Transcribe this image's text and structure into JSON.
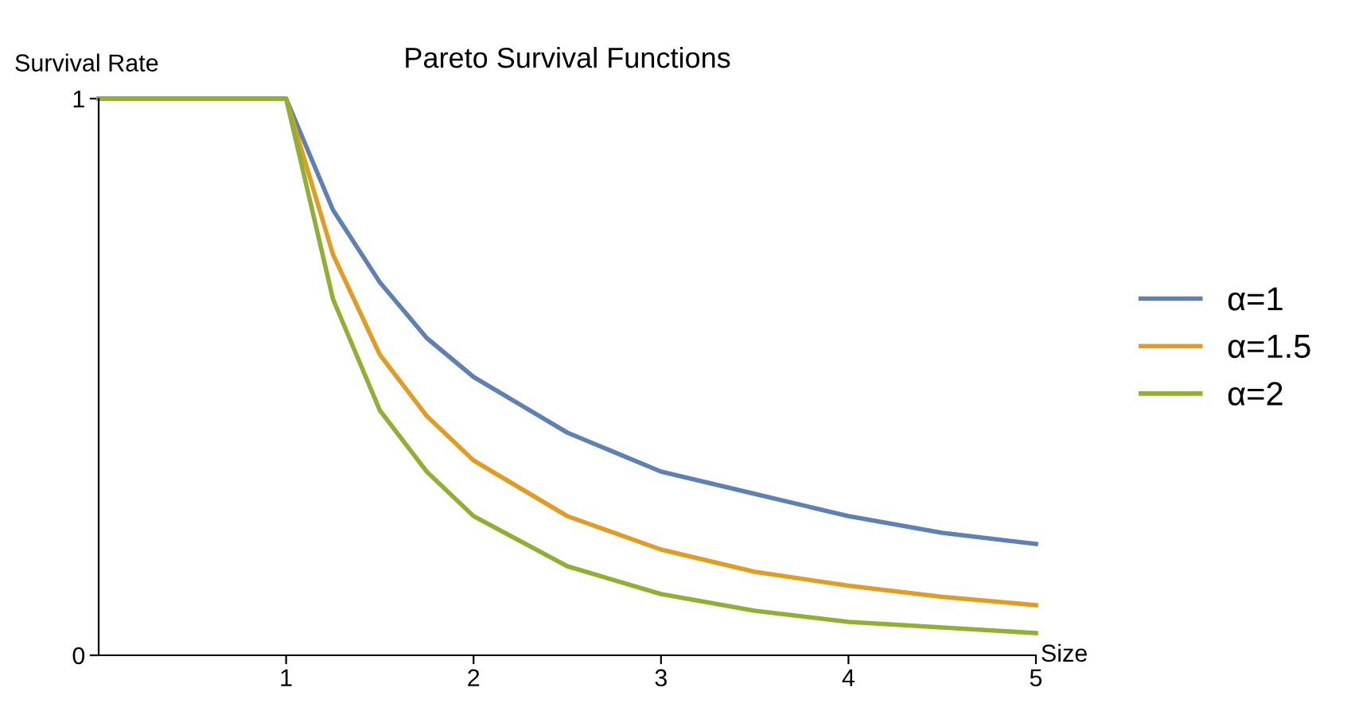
{
  "chart_data": {
    "type": "line",
    "title": "Pareto Survival Functions",
    "xlabel": "Size",
    "ylabel": "Survival Rate",
    "x": [
      0,
      1,
      1.25,
      1.5,
      1.75,
      2,
      2.5,
      3,
      3.5,
      4,
      4.5,
      5
    ],
    "series": [
      {
        "name": "α=1",
        "color": "#5e81b5",
        "values": [
          1,
          1,
          0.8,
          0.67,
          0.57,
          0.5,
          0.4,
          0.33,
          0.29,
          0.25,
          0.22,
          0.2
        ]
      },
      {
        "name": "α=1.5",
        "color": "#e19c24",
        "values": [
          1,
          1,
          0.72,
          0.54,
          0.43,
          0.35,
          0.25,
          0.19,
          0.15,
          0.125,
          0.105,
          0.09
        ]
      },
      {
        "name": "α=2",
        "color": "#8fb032",
        "values": [
          1,
          1,
          0.64,
          0.44,
          0.33,
          0.25,
          0.16,
          0.11,
          0.08,
          0.06,
          0.05,
          0.04
        ]
      }
    ],
    "xlim": [
      0,
      5
    ],
    "ylim": [
      0,
      1
    ],
    "xticks": [
      1,
      2,
      3,
      4,
      5
    ],
    "yticks": [
      0,
      1
    ],
    "grid": false,
    "legend": "right",
    "marker": "none",
    "line_style": "solid"
  }
}
